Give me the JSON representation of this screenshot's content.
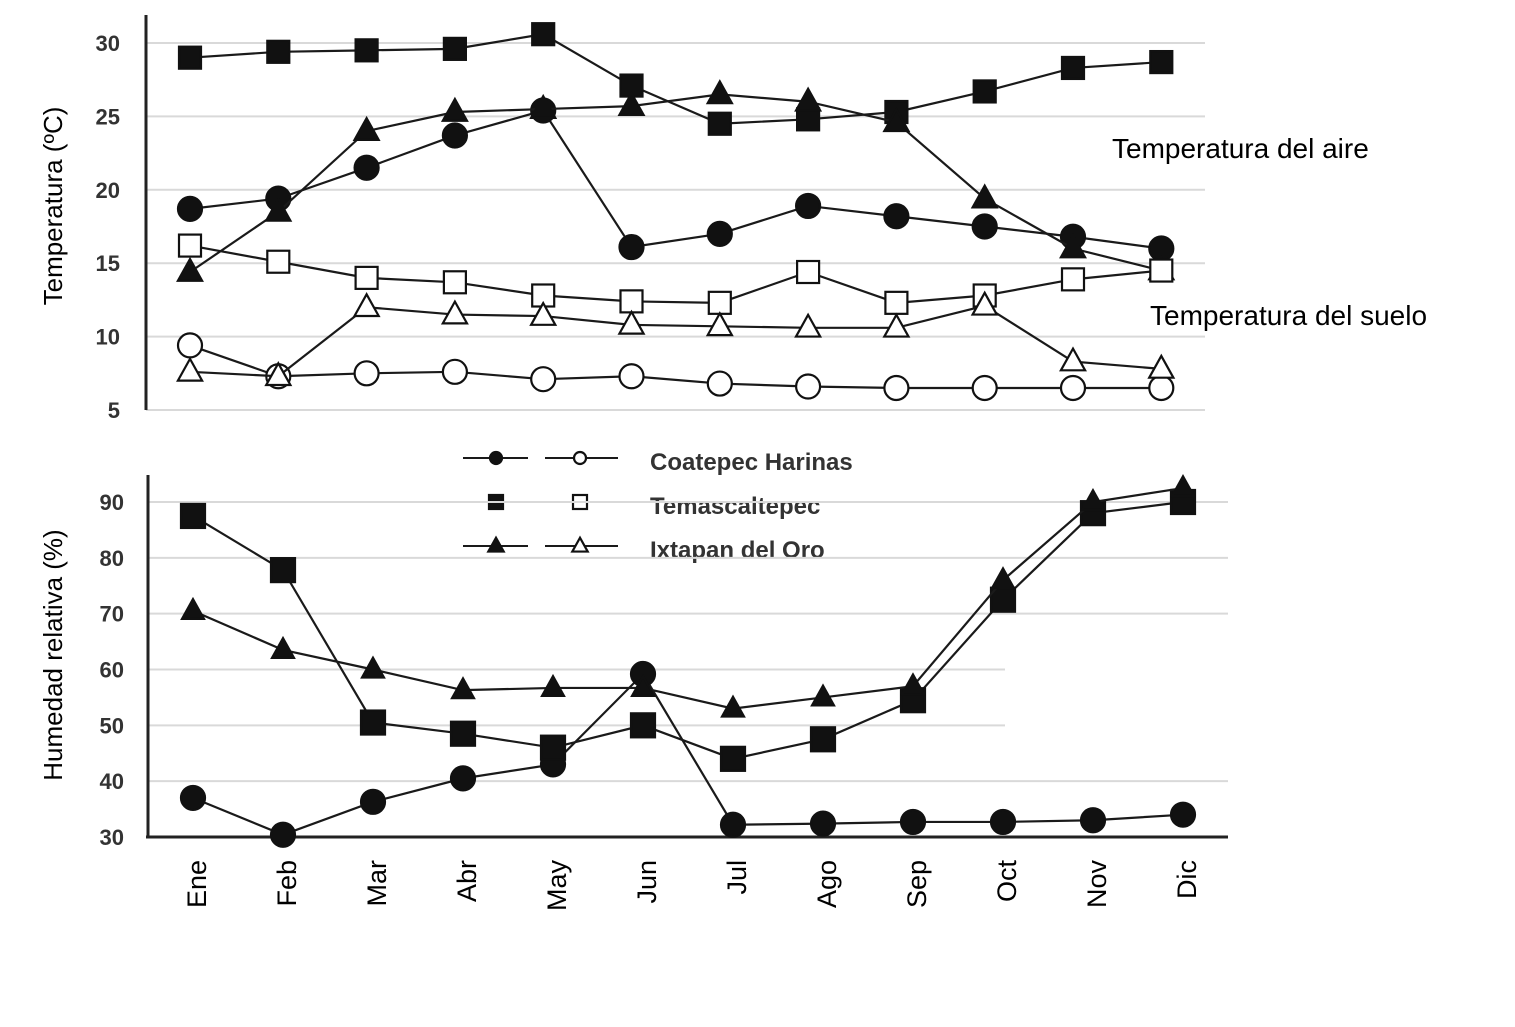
{
  "chart_data": [
    {
      "type": "line",
      "ylabel": "Temperatura (ºC)",
      "ylim": [
        5,
        30
      ],
      "yticks": [
        30,
        25,
        20,
        15,
        10,
        5
      ],
      "grid": true,
      "categories": [
        "Ene",
        "Feb",
        "Mar",
        "Abr",
        "May",
        "Jun",
        "Jul",
        "Ago",
        "Sep",
        "Oct",
        "Nov",
        "Dic"
      ],
      "annotations": [
        "Temperatura del aire",
        "Temperatura del suelo"
      ],
      "series": [
        {
          "name": "Coatepec Harinas",
          "group": "Temperatura del aire",
          "marker": "circle",
          "filled": true,
          "values": [
            18.7,
            19.4,
            21.5,
            23.7,
            25.4,
            16.1,
            17.0,
            18.9,
            18.2,
            17.5,
            16.8,
            16.0
          ]
        },
        {
          "name": "Temascaltepec",
          "group": "Temperatura del aire",
          "marker": "square",
          "filled": true,
          "values": [
            29.0,
            29.4,
            29.5,
            29.6,
            30.6,
            27.1,
            24.5,
            24.8,
            25.3,
            26.7,
            28.3,
            28.7
          ]
        },
        {
          "name": "Ixtapan del Oro",
          "group": "Temperatura del aire",
          "marker": "triangle",
          "filled": true,
          "values": [
            14.4,
            18.5,
            24.0,
            25.3,
            25.5,
            25.7,
            26.5,
            26.0,
            24.6,
            19.4,
            16.0,
            14.5
          ]
        },
        {
          "name": "Coatepec Harinas",
          "group": "Temperatura del suelo",
          "marker": "circle",
          "filled": false,
          "values": [
            9.4,
            7.3,
            7.5,
            7.6,
            7.1,
            7.3,
            6.8,
            6.6,
            6.5,
            6.5,
            6.5,
            6.5
          ]
        },
        {
          "name": "Temascaltepec",
          "group": "Temperatura del suelo",
          "marker": "square",
          "filled": false,
          "values": [
            16.2,
            15.1,
            14.0,
            13.7,
            12.8,
            12.4,
            12.3,
            14.4,
            12.3,
            12.8,
            13.9,
            14.5
          ]
        },
        {
          "name": "Ixtapan del Oro",
          "group": "Temperatura del suelo",
          "marker": "triangle",
          "filled": false,
          "values": [
            7.6,
            7.3,
            12.0,
            11.5,
            11.4,
            10.8,
            10.7,
            10.6,
            10.6,
            12.1,
            8.3,
            7.8
          ]
        }
      ]
    },
    {
      "type": "line",
      "ylabel": "Humedad relativa (%)",
      "ylim": [
        30,
        90
      ],
      "yticks": [
        90,
        80,
        70,
        60,
        50,
        40,
        30
      ],
      "grid": true,
      "categories": [
        "Ene",
        "Feb",
        "Mar",
        "Abr",
        "May",
        "Jun",
        "Jul",
        "Ago",
        "Sep",
        "Oct",
        "Nov",
        "Dic"
      ],
      "legend": {
        "placement": "top-center",
        "entries": [
          "Coatepec Harinas",
          "Temascaltepec",
          "Ixtapan del Oro"
        ]
      },
      "series": [
        {
          "name": "Coatepec Harinas",
          "marker": "circle",
          "filled": true,
          "values": [
            37.0,
            30.4,
            36.3,
            40.5,
            43.0,
            59.2,
            32.2,
            32.4,
            32.7,
            32.7,
            33.0,
            34.0
          ]
        },
        {
          "name": "Temascaltepec",
          "marker": "square",
          "filled": true,
          "values": [
            87.5,
            77.8,
            50.5,
            48.5,
            46.0,
            50.0,
            44.0,
            47.5,
            54.5,
            72.5,
            88.0,
            90.0
          ]
        },
        {
          "name": "Ixtapan del Oro",
          "marker": "triangle",
          "filled": true,
          "values": [
            70.5,
            63.5,
            60.0,
            56.3,
            56.7,
            56.7,
            53.0,
            55.0,
            57.0,
            76.0,
            90.0,
            92.5
          ]
        }
      ]
    }
  ]
}
